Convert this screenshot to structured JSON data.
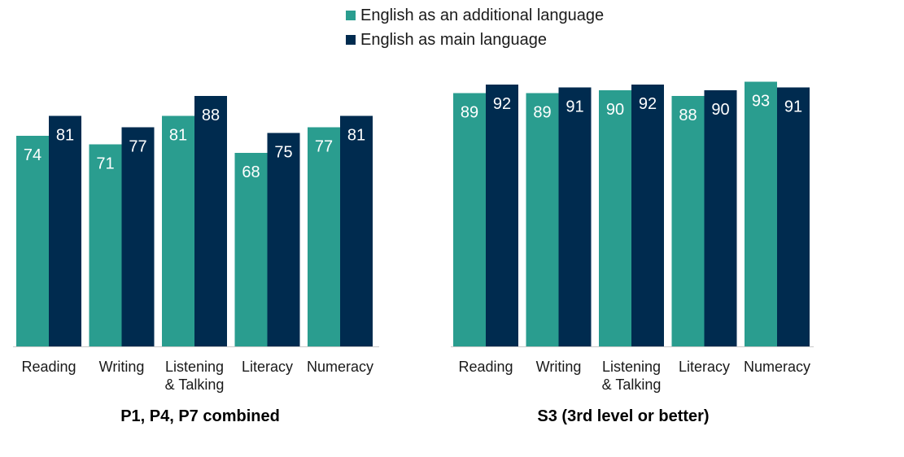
{
  "legend": {
    "series_a": "English as an additional language",
    "series_b": "English as main language"
  },
  "colors": {
    "series_a": "#2a9d8f",
    "series_b": "#002b4f",
    "axis": "#c8c8c8",
    "label_text": "#ffffff"
  },
  "chart_data": [
    {
      "type": "bar",
      "title": "P1, P4, P7 combined",
      "categories": [
        "Reading",
        "Writing",
        "Listening & Talking",
        "Literacy",
        "Numeracy"
      ],
      "series": [
        {
          "name": "English as an additional language",
          "values": [
            74,
            71,
            81,
            68,
            77
          ]
        },
        {
          "name": "English as main language",
          "values": [
            81,
            77,
            88,
            75,
            81
          ]
        }
      ],
      "ylim": [
        0,
        100
      ],
      "grid": false,
      "data_labels": true,
      "legend": "top"
    },
    {
      "type": "bar",
      "title": "S3 (3rd level or better)",
      "categories": [
        "Reading",
        "Writing",
        "Listening & Talking",
        "Literacy",
        "Numeracy"
      ],
      "series": [
        {
          "name": "English as an additional language",
          "values": [
            89,
            89,
            90,
            88,
            93
          ]
        },
        {
          "name": "English as main language",
          "values": [
            92,
            91,
            92,
            90,
            91
          ]
        }
      ],
      "ylim": [
        0,
        100
      ],
      "grid": false,
      "data_labels": true,
      "legend": "top"
    }
  ]
}
